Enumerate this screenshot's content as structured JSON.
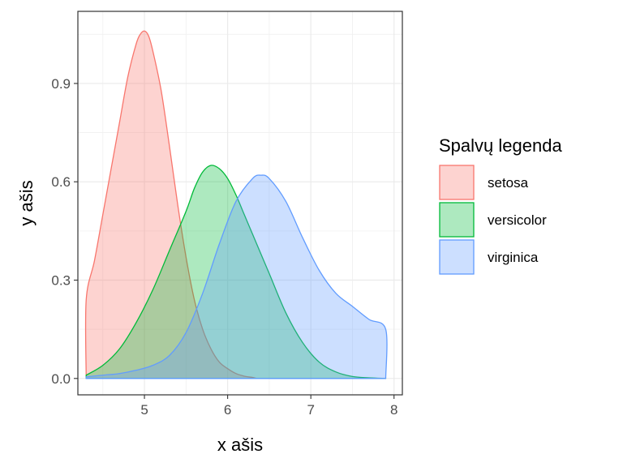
{
  "chart_data": {
    "type": "area",
    "subtype": "density",
    "xlabel": "x ašis",
    "ylabel": "y ašis",
    "xlim": [
      4.2,
      8.1
    ],
    "ylim": [
      -0.05,
      1.12
    ],
    "x_ticks": [
      5,
      6,
      7,
      8
    ],
    "y_ticks": [
      0.0,
      0.3,
      0.6,
      0.9
    ],
    "x_tick_labels": [
      "5",
      "6",
      "7",
      "8"
    ],
    "y_tick_labels": [
      "0.0",
      "0.3",
      "0.6",
      "0.9"
    ],
    "grid": true,
    "legend": {
      "title": "Spalvų legenda",
      "position": "right"
    },
    "series": [
      {
        "name": "setosa",
        "color": "#F8766D",
        "x": [
          4.3,
          4.3,
          4.4,
          4.5,
          4.6,
          4.7,
          4.8,
          4.9,
          4.95,
          5.0,
          5.05,
          5.1,
          5.2,
          5.3,
          5.4,
          5.5,
          5.6,
          5.7,
          5.8,
          5.9,
          6.0,
          6.1,
          6.2,
          6.3,
          6.35
        ],
        "y": [
          0.0,
          0.24,
          0.36,
          0.5,
          0.64,
          0.78,
          0.92,
          1.02,
          1.05,
          1.06,
          1.045,
          1.0,
          0.88,
          0.71,
          0.53,
          0.37,
          0.24,
          0.15,
          0.09,
          0.05,
          0.03,
          0.015,
          0.007,
          0.003,
          0.0
        ]
      },
      {
        "name": "versicolor",
        "color": "#00BA38",
        "x": [
          4.3,
          4.5,
          4.7,
          4.9,
          5.1,
          5.3,
          5.5,
          5.6,
          5.7,
          5.8,
          5.9,
          6.0,
          6.1,
          6.2,
          6.3,
          6.5,
          6.7,
          6.9,
          7.1,
          7.3,
          7.5,
          7.7,
          7.9
        ],
        "y": [
          0.01,
          0.04,
          0.09,
          0.17,
          0.27,
          0.39,
          0.51,
          0.58,
          0.63,
          0.65,
          0.64,
          0.61,
          0.56,
          0.5,
          0.44,
          0.32,
          0.2,
          0.11,
          0.05,
          0.02,
          0.006,
          0.002,
          0.0
        ]
      },
      {
        "name": "virginica",
        "color": "#619CFF",
        "x": [
          4.3,
          4.5,
          4.7,
          4.9,
          5.1,
          5.3,
          5.5,
          5.7,
          5.9,
          6.1,
          6.3,
          6.4,
          6.5,
          6.7,
          6.9,
          7.1,
          7.3,
          7.5,
          7.7,
          7.9,
          7.9
        ],
        "y": [
          0.005,
          0.01,
          0.015,
          0.025,
          0.04,
          0.07,
          0.14,
          0.26,
          0.41,
          0.54,
          0.61,
          0.62,
          0.61,
          0.54,
          0.43,
          0.33,
          0.26,
          0.22,
          0.18,
          0.15,
          0.0
        ]
      }
    ]
  }
}
